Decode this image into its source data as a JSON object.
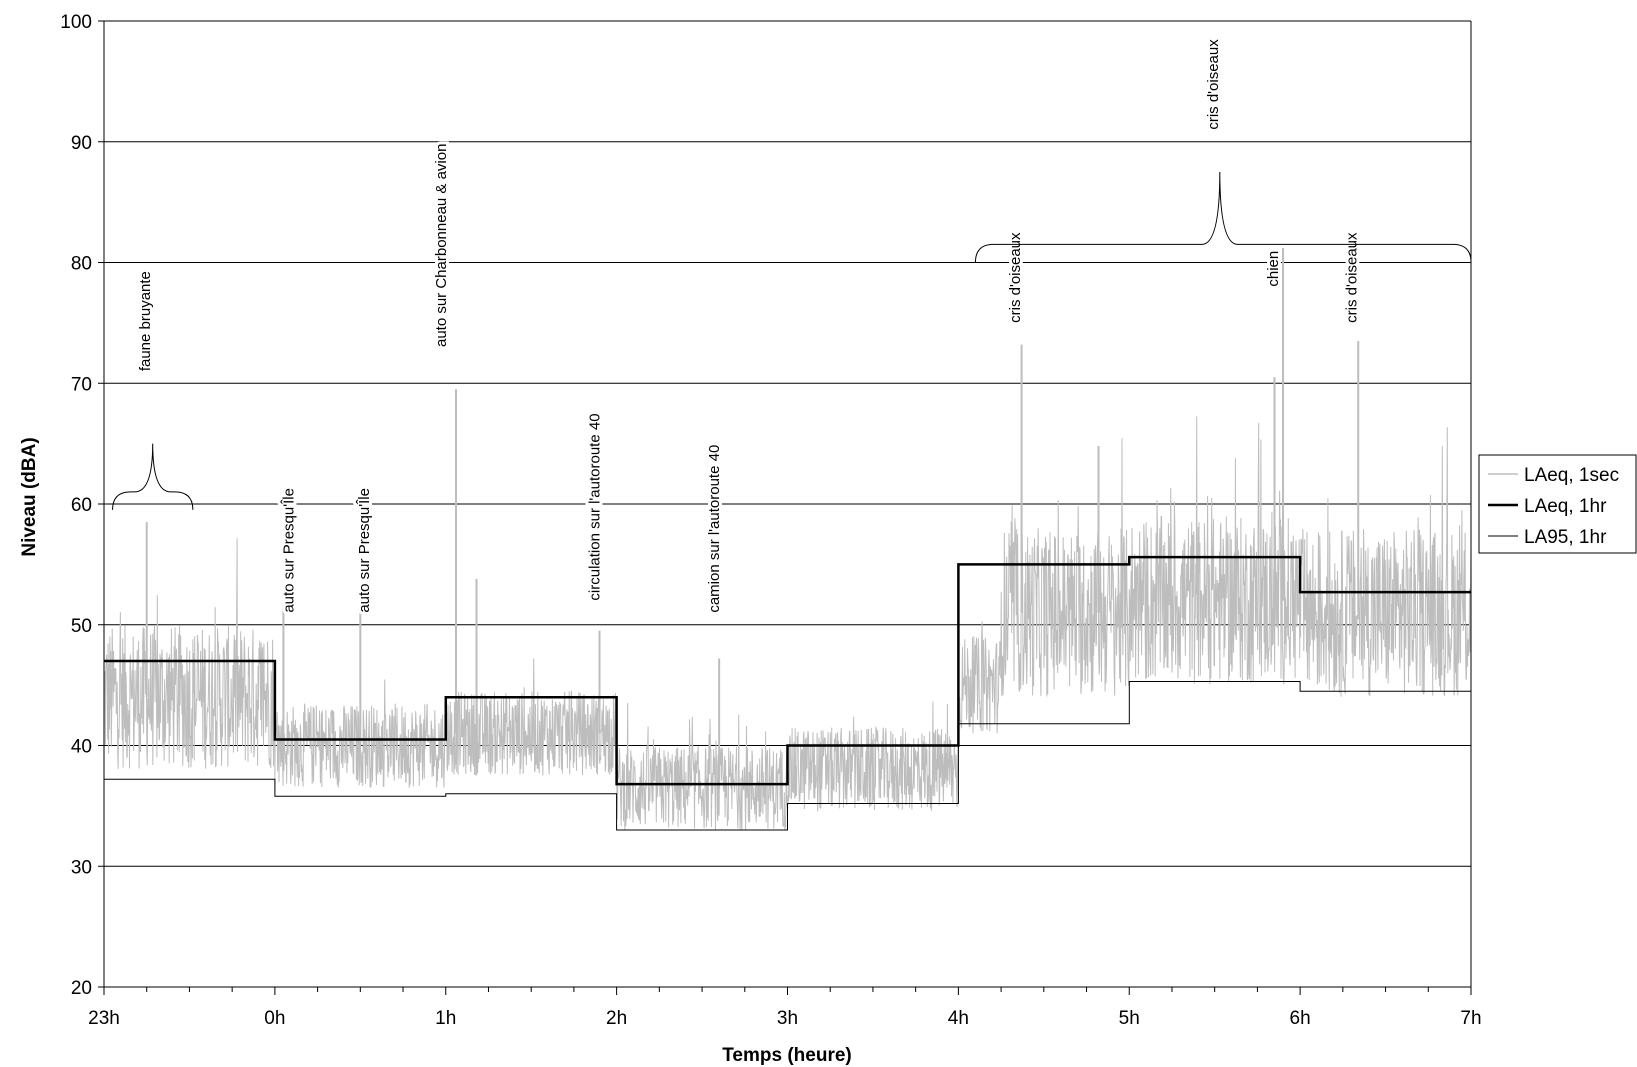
{
  "chart_data": {
    "type": "line",
    "xlabel": "Temps (heure)",
    "ylabel": "Niveau (dBA)",
    "x_ticks": [
      "23h",
      "0h",
      "1h",
      "2h",
      "3h",
      "4h",
      "5h",
      "6h",
      "7h"
    ],
    "x_range_hours": [
      0,
      8
    ],
    "ylim": [
      20,
      100
    ],
    "y_ticks": [
      20,
      30,
      40,
      50,
      60,
      70,
      80,
      90,
      100
    ],
    "grid": "horizontal",
    "legend_position": "right",
    "legend": [
      "LAeq, 1sec",
      "LAeq, 1hr",
      "LA95, 1hr"
    ],
    "colors": {
      "laeq_1sec": "#bdbdbd",
      "laeq_1hr": "#000000",
      "la95_1hr": "#000000"
    },
    "series": [
      {
        "name": "LAeq, 1hr",
        "x_hours": [
          0,
          1,
          1,
          2,
          2,
          3,
          3,
          4,
          4,
          5,
          5,
          6,
          6,
          7,
          7,
          8
        ],
        "values": [
          47,
          47,
          40.5,
          40.5,
          44,
          44,
          36.8,
          36.8,
          40,
          40,
          55,
          55,
          55.6,
          55.6,
          52.7,
          52.7
        ],
        "note_x": "step segments (hour index from 23h)"
      },
      {
        "name": "LA95, 1hr",
        "x_hours": [
          0,
          1,
          1,
          2,
          2,
          3,
          3,
          4,
          4,
          5,
          5,
          6,
          6,
          7,
          7,
          8
        ],
        "values": [
          37.2,
          37.2,
          35.8,
          35.8,
          36,
          36,
          33,
          33,
          35.2,
          35.2,
          41.8,
          41.8,
          45.3,
          45.3,
          44.5,
          44.5
        ]
      },
      {
        "name": "LAeq, 1sec",
        "base_per_hour": [
          44,
          40,
          41,
          36.5,
          38,
          51,
          52,
          51
        ],
        "spikes": [
          {
            "x_hours": 0.25,
            "value": 58.5
          },
          {
            "x_hours": 1.05,
            "value": 52.8
          },
          {
            "x_hours": 1.5,
            "value": 52
          },
          {
            "x_hours": 2.06,
            "value": 69.5
          },
          {
            "x_hours": 2.18,
            "value": 53.8
          },
          {
            "x_hours": 2.9,
            "value": 49.5
          },
          {
            "x_hours": 3.6,
            "value": 47.2
          },
          {
            "x_hours": 5.37,
            "value": 73.2
          },
          {
            "x_hours": 5.82,
            "value": 64.8
          },
          {
            "x_hours": 6.85,
            "value": 70.5
          },
          {
            "x_hours": 6.9,
            "value": 81.2
          },
          {
            "x_hours": 7.34,
            "value": 73.5
          }
        ]
      }
    ],
    "annotations": [
      {
        "text": "faune bruyante",
        "x_hours": 0.27,
        "y": 71
      },
      {
        "text": "auto sur Presqu'Île",
        "x_hours": 1.11,
        "y": 51
      },
      {
        "text": "auto sur Presqu'Île",
        "x_hours": 1.55,
        "y": 51
      },
      {
        "text": "auto sur Charbonneau & avion",
        "x_hours": 2.0,
        "y": 73
      },
      {
        "text": "circulation sur l'autoroute 40",
        "x_hours": 2.9,
        "y": 52
      },
      {
        "text": "camion sur l'autoroute 40",
        "x_hours": 3.6,
        "y": 51
      },
      {
        "text": "cris d'oiseaux",
        "x_hours": 5.36,
        "y": 75
      },
      {
        "text": "cris d'oiseaux",
        "x_hours": 6.52,
        "y": 91
      },
      {
        "text": "chien",
        "x_hours": 6.87,
        "y": 78
      },
      {
        "text": "cris d'oiseaux",
        "x_hours": 7.33,
        "y": 75
      }
    ],
    "braces": [
      {
        "x_hours": [
          0.05,
          0.52
        ],
        "y": 61,
        "peak_y": 65,
        "dir": "up"
      },
      {
        "x_hours": [
          5.1,
          8.0
        ],
        "y": 81.5,
        "peak_y": 87.5,
        "peak_x_hours": 6.53,
        "dir": "up"
      }
    ]
  }
}
